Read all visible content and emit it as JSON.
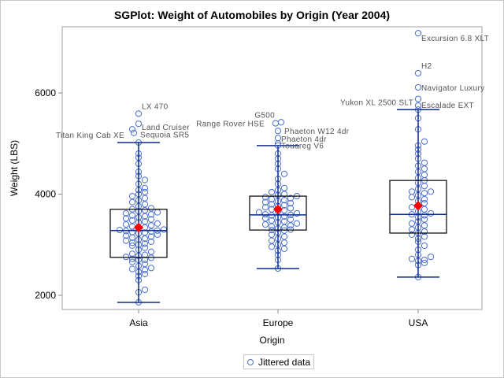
{
  "chart_data": {
    "type": "box",
    "title": "SGPlot: Weight of Automobiles by Origin (Year 2004)",
    "xlabel": "Origin",
    "ylabel": "Weight (LBS)",
    "ylim": [
      1750,
      7350
    ],
    "yticks": [
      2000,
      4000,
      6000
    ],
    "categories": [
      "Asia",
      "Europe",
      "USA"
    ],
    "legend": {
      "position": "bottom",
      "entries": [
        "Jittered data"
      ]
    },
    "colors": {
      "marker": "#4a6fcf",
      "whisker": "#0b2a8a",
      "mean": "#ff0000",
      "box": "#000000"
    },
    "boxes": [
      {
        "category": "Asia",
        "min": 1860,
        "q1": 2750,
        "median": 3280,
        "mean": 3340,
        "q3": 3700,
        "max": 5020
      },
      {
        "category": "Europe",
        "min": 2530,
        "q1": 3290,
        "median": 3590,
        "mean": 3700,
        "q3": 3960,
        "max": 4960
      },
      {
        "category": "USA",
        "min": 2360,
        "q1": 3230,
        "median": 3600,
        "mean": 3770,
        "q3": 4270,
        "max": 5670
      }
    ],
    "labeled_outliers": [
      {
        "category": "Asia",
        "label": "LX 470",
        "value": 5590
      },
      {
        "category": "Asia",
        "label": "Land Cruiser",
        "value": 5390
      },
      {
        "category": "Asia",
        "label": "Sequoia SR5",
        "value": 5280
      },
      {
        "category": "Asia",
        "label": "Titan King Cab XE",
        "value": 5210
      },
      {
        "category": "Europe",
        "label": "G500",
        "value": 5420
      },
      {
        "category": "Europe",
        "label": "Range Rover HSE",
        "value": 5400
      },
      {
        "category": "Europe",
        "label": "Phaeton W12 4dr",
        "value": 5250
      },
      {
        "category": "Europe",
        "label": "Phaeton 4dr",
        "value": 5110
      },
      {
        "category": "Europe",
        "label": "Touareg V6",
        "value": 5000
      },
      {
        "category": "USA",
        "label": "Excursion 6.8 XLT",
        "value": 7180
      },
      {
        "category": "USA",
        "label": "H2",
        "value": 6390
      },
      {
        "category": "USA",
        "label": "Navigator Luxury",
        "value": 6110
      },
      {
        "category": "USA",
        "label": "Yukon XL 2500 SLT",
        "value": 5880
      },
      {
        "category": "USA",
        "label": "Escalade EXT",
        "value": 5750
      }
    ],
    "jittered_points": {
      "Asia": [
        1860,
        2060,
        2110,
        2300,
        2380,
        2420,
        2460,
        2500,
        2520,
        2540,
        2580,
        2620,
        2660,
        2700,
        2700,
        2720,
        2740,
        2760,
        2780,
        2800,
        2820,
        2860,
        2900,
        2940,
        2980,
        3000,
        3020,
        3040,
        3060,
        3080,
        3100,
        3120,
        3140,
        3160,
        3180,
        3200,
        3220,
        3240,
        3250,
        3260,
        3270,
        3280,
        3290,
        3300,
        3320,
        3340,
        3360,
        3380,
        3400,
        3420,
        3440,
        3460,
        3480,
        3500,
        3520,
        3540,
        3560,
        3580,
        3600,
        3620,
        3640,
        3660,
        3680,
        3700,
        3720,
        3760,
        3800,
        3840,
        3880,
        3920,
        3960,
        4000,
        4040,
        4080,
        4120,
        4200,
        4280,
        4360,
        4440,
        4600,
        4720,
        4800,
        5020
      ],
      "Europe": [
        2530,
        2700,
        2800,
        2880,
        2920,
        2960,
        3000,
        3040,
        3080,
        3120,
        3160,
        3200,
        3240,
        3280,
        3290,
        3300,
        3320,
        3340,
        3360,
        3380,
        3400,
        3420,
        3440,
        3460,
        3480,
        3500,
        3520,
        3540,
        3560,
        3580,
        3590,
        3600,
        3620,
        3640,
        3660,
        3680,
        3700,
        3720,
        3740,
        3760,
        3780,
        3800,
        3820,
        3840,
        3860,
        3880,
        3900,
        3920,
        3940,
        3960,
        3980,
        4000,
        4040,
        4080,
        4120,
        4200,
        4300,
        4400,
        4500,
        4600,
        4700,
        4800,
        4960
      ],
      "USA": [
        2360,
        2600,
        2640,
        2680,
        2700,
        2720,
        2760,
        2800,
        2900,
        2980,
        3060,
        3120,
        3160,
        3200,
        3230,
        3260,
        3300,
        3340,
        3380,
        3420,
        3460,
        3500,
        3540,
        3580,
        3600,
        3620,
        3660,
        3700,
        3740,
        3780,
        3820,
        3860,
        3900,
        3940,
        3980,
        4020,
        4050,
        4050,
        4100,
        4160,
        4220,
        4270,
        4320,
        4380,
        4440,
        4500,
        4560,
        4620,
        4700,
        4800,
        4880,
        4960,
        5040,
        5280,
        5500,
        5670
      ]
    }
  }
}
